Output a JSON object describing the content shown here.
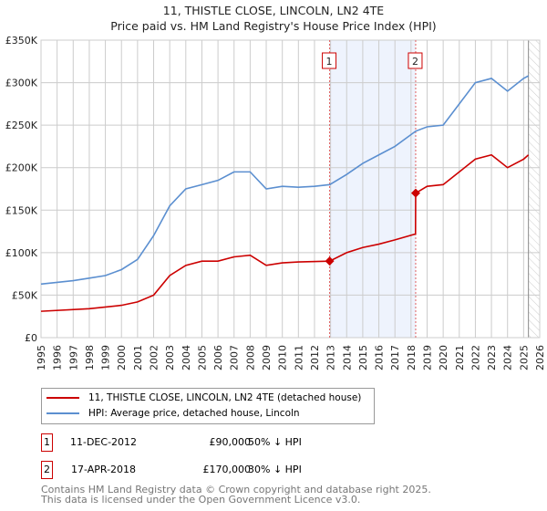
{
  "chart_data": {
    "type": "line",
    "title": "11, THISTLE CLOSE, LINCOLN, LN2 4TE",
    "subtitle": "Price paid vs. HM Land Registry's House Price Index (HPI)",
    "xlim": [
      1995,
      2026
    ],
    "ylim": [
      0,
      350000
    ],
    "x_ticks": [
      "1995",
      "1996",
      "1997",
      "1998",
      "1999",
      "2000",
      "2001",
      "2002",
      "2003",
      "2004",
      "2005",
      "2006",
      "2007",
      "2008",
      "2009",
      "2010",
      "2011",
      "2012",
      "2013",
      "2014",
      "2015",
      "2016",
      "2017",
      "2018",
      "2019",
      "2020",
      "2021",
      "2022",
      "2023",
      "2024",
      "2025",
      "2026"
    ],
    "y_ticks": [
      {
        "v": 0,
        "label": "£0"
      },
      {
        "v": 50000,
        "label": "£50K"
      },
      {
        "v": 100000,
        "label": "£100K"
      },
      {
        "v": 150000,
        "label": "£150K"
      },
      {
        "v": 200000,
        "label": "£200K"
      },
      {
        "v": 250000,
        "label": "£250K"
      },
      {
        "v": 300000,
        "label": "£300K"
      },
      {
        "v": 350000,
        "label": "£350K"
      }
    ],
    "series": [
      {
        "name": "11, THISTLE CLOSE, LINCOLN, LN2 4TE (detached house)",
        "color": "#cc0000",
        "x": [
          1995,
          1998,
          2000,
          2001,
          2002,
          2003,
          2004,
          2005,
          2006,
          2007,
          2008,
          2009,
          2010,
          2011,
          2012.94,
          2014,
          2015,
          2016,
          2017,
          2018.28,
          2018.29,
          2019,
          2020,
          2021,
          2022,
          2023,
          2024,
          2025,
          2025.3
        ],
        "y": [
          31000,
          34000,
          38000,
          42000,
          50000,
          73000,
          85000,
          90000,
          90000,
          95000,
          97000,
          85000,
          88000,
          89000,
          90000,
          100000,
          106000,
          110000,
          115000,
          122000,
          170000,
          178000,
          180000,
          195000,
          210000,
          215000,
          200000,
          210000,
          215000
        ]
      },
      {
        "name": "HPI: Average price, detached house, Lincoln",
        "color": "#5b8fd0",
        "x": [
          1995,
          1996,
          1997,
          1998,
          1999,
          2000,
          2001,
          2002,
          2003,
          2004,
          2005,
          2006,
          2007,
          2008,
          2009,
          2010,
          2011,
          2012,
          2012.95,
          2014,
          2015,
          2016,
          2017,
          2018.3,
          2019,
          2020,
          2021,
          2022,
          2023,
          2024,
          2025,
          2025.3
        ],
        "y": [
          63000,
          65000,
          67000,
          70000,
          73000,
          80000,
          92000,
          120000,
          155000,
          175000,
          180000,
          185000,
          195000,
          195000,
          175000,
          178000,
          177000,
          178000,
          180000,
          192000,
          205000,
          215000,
          225000,
          243000,
          248000,
          250000,
          275000,
          300000,
          305000,
          290000,
          305000,
          308000
        ]
      }
    ],
    "sales": [
      {
        "label": "1",
        "x": 2012.94,
        "y": 90000,
        "date": "11-DEC-2012",
        "price": "£90,000",
        "hpi": "50% ↓ HPI"
      },
      {
        "label": "2",
        "x": 2018.29,
        "y": 170000,
        "date": "17-APR-2018",
        "price": "£170,000",
        "hpi": "30% ↓ HPI"
      }
    ],
    "forecast_start": 2025.3
  },
  "footer": {
    "line1": "Contains HM Land Registry data © Crown copyright and database right 2025.",
    "line2": "This data is licensed under the Open Government Licence v3.0."
  }
}
